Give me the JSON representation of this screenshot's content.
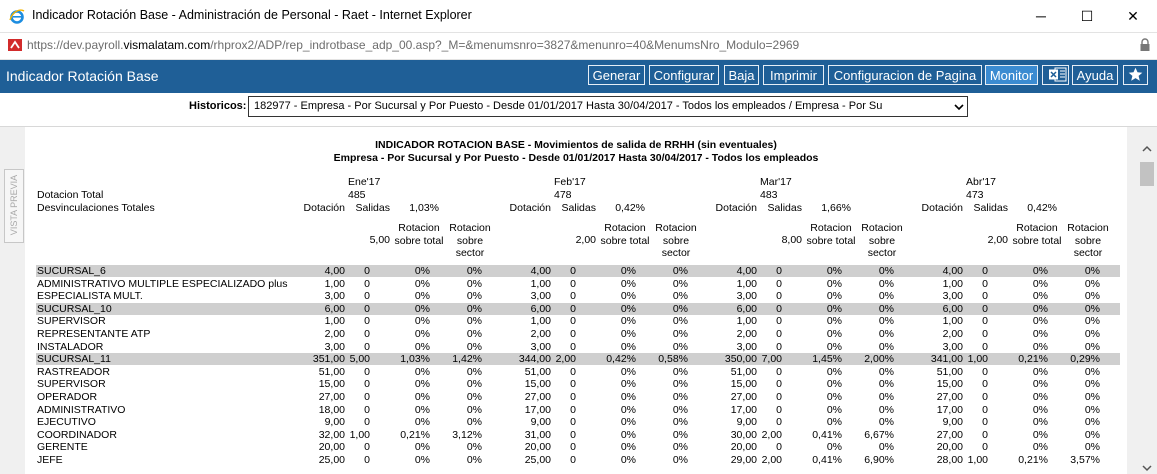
{
  "window": {
    "title": "Indicador Rotación Base - Administración de Personal - Raet - Internet Explorer",
    "minimize": "─",
    "maximize": "☐",
    "close": "✕"
  },
  "address": {
    "prefix": "https://dev.payroll.",
    "host": "vismalatam.com",
    "path": "/rhprox2/ADP/rep_indrotbase_adp_00.asp?_M=&menumsnro=3827&menunro=40&MenumsNro_Modulo=2969"
  },
  "app": {
    "title": "Indicador Rotación Base",
    "buttons": {
      "generar": "Generar",
      "configurar": "Configurar",
      "baja": "Baja",
      "imprimir": "Imprimir",
      "configpagina": "Configuracion de Pagina",
      "monitor": "Monitor",
      "ayuda": "Ayuda"
    }
  },
  "historicos": {
    "label": "Historicos:",
    "value": "182977 - Empresa - Por Sucursal y Por Puesto - Desde 01/01/2017 Hasta 30/04/2017 - Todos los empleados / Empresa - Por Su"
  },
  "vista_previa": "VISTA PREVIA",
  "report": {
    "title": "INDICADOR ROTACION BASE - Movimientos de salida de RRHH (sin eventuales)",
    "subtitle": "Empresa - Por Sucursal y Por Puesto - Desde 01/01/2017 Hasta 30/04/2017 - Todos los empleados",
    "dotacion_total_label": "Dotacion Total",
    "desv_totales_label": "Desvinculaciones Totales",
    "months": [
      {
        "name": "Ene'17",
        "dot_total": "485",
        "hdr_dot": "Dotación",
        "hdr_sal": "Salidas",
        "desv_pct": "1,03%",
        "salidas_total": "5,00",
        "rot_total": "Rotacion sobre total",
        "rot_sector": "Rotacion sobre sector"
      },
      {
        "name": "Feb'17",
        "dot_total": "478",
        "hdr_dot": "Dotación",
        "hdr_sal": "Salidas",
        "desv_pct": "0,42%",
        "salidas_total": "2,00",
        "rot_total": "Rotacion sobre total",
        "rot_sector": "Rotacion sobre sector"
      },
      {
        "name": "Mar'17",
        "dot_total": "483",
        "hdr_dot": "Dotación",
        "hdr_sal": "Salidas",
        "desv_pct": "1,66%",
        "salidas_total": "8,00",
        "rot_total": "Rotacion sobre total",
        "rot_sector": "Rotacion sobre sector"
      },
      {
        "name": "Abr'17",
        "dot_total": "473",
        "hdr_dot": "Dotación",
        "hdr_sal": "Salidas",
        "desv_pct": "0,42%",
        "salidas_total": "2,00",
        "rot_total": "Rotacion sobre total",
        "rot_sector": "Rotacion sobre sector"
      }
    ],
    "rows": [
      {
        "label": "SUCURSAL_6",
        "hl": true,
        "v": [
          [
            "4,00",
            "0",
            "0%",
            "0%"
          ],
          [
            "4,00",
            "0",
            "0%",
            "0%"
          ],
          [
            "4,00",
            "0",
            "0%",
            "0%"
          ],
          [
            "4,00",
            "0",
            "0%",
            "0%"
          ]
        ]
      },
      {
        "label": "ADMINISTRATIVO MULTIPLE ESPECIALIZADO plus",
        "hl": false,
        "v": [
          [
            "1,00",
            "0",
            "0%",
            "0%"
          ],
          [
            "1,00",
            "0",
            "0%",
            "0%"
          ],
          [
            "1,00",
            "0",
            "0%",
            "0%"
          ],
          [
            "1,00",
            "0",
            "0%",
            "0%"
          ]
        ]
      },
      {
        "label": "ESPECIALISTA MULT.",
        "hl": false,
        "v": [
          [
            "3,00",
            "0",
            "0%",
            "0%"
          ],
          [
            "3,00",
            "0",
            "0%",
            "0%"
          ],
          [
            "3,00",
            "0",
            "0%",
            "0%"
          ],
          [
            "3,00",
            "0",
            "0%",
            "0%"
          ]
        ]
      },
      {
        "label": "SUCURSAL_10",
        "hl": true,
        "v": [
          [
            "6,00",
            "0",
            "0%",
            "0%"
          ],
          [
            "6,00",
            "0",
            "0%",
            "0%"
          ],
          [
            "6,00",
            "0",
            "0%",
            "0%"
          ],
          [
            "6,00",
            "0",
            "0%",
            "0%"
          ]
        ]
      },
      {
        "label": "SUPERVISOR",
        "hl": false,
        "v": [
          [
            "1,00",
            "0",
            "0%",
            "0%"
          ],
          [
            "1,00",
            "0",
            "0%",
            "0%"
          ],
          [
            "1,00",
            "0",
            "0%",
            "0%"
          ],
          [
            "1,00",
            "0",
            "0%",
            "0%"
          ]
        ]
      },
      {
        "label": "REPRESENTANTE ATP",
        "hl": false,
        "v": [
          [
            "2,00",
            "0",
            "0%",
            "0%"
          ],
          [
            "2,00",
            "0",
            "0%",
            "0%"
          ],
          [
            "2,00",
            "0",
            "0%",
            "0%"
          ],
          [
            "2,00",
            "0",
            "0%",
            "0%"
          ]
        ]
      },
      {
        "label": "INSTALADOR",
        "hl": false,
        "v": [
          [
            "3,00",
            "0",
            "0%",
            "0%"
          ],
          [
            "3,00",
            "0",
            "0%",
            "0%"
          ],
          [
            "3,00",
            "0",
            "0%",
            "0%"
          ],
          [
            "3,00",
            "0",
            "0%",
            "0%"
          ]
        ]
      },
      {
        "label": "SUCURSAL_11",
        "hl": true,
        "v": [
          [
            "351,00",
            "5,00",
            "1,03%",
            "1,42%"
          ],
          [
            "344,00",
            "2,00",
            "0,42%",
            "0,58%"
          ],
          [
            "350,00",
            "7,00",
            "1,45%",
            "2,00%"
          ],
          [
            "341,00",
            "1,00",
            "0,21%",
            "0,29%"
          ]
        ]
      },
      {
        "label": "RASTREADOR",
        "hl": false,
        "v": [
          [
            "51,00",
            "0",
            "0%",
            "0%"
          ],
          [
            "51,00",
            "0",
            "0%",
            "0%"
          ],
          [
            "51,00",
            "0",
            "0%",
            "0%"
          ],
          [
            "51,00",
            "0",
            "0%",
            "0%"
          ]
        ]
      },
      {
        "label": "SUPERVISOR",
        "hl": false,
        "v": [
          [
            "15,00",
            "0",
            "0%",
            "0%"
          ],
          [
            "15,00",
            "0",
            "0%",
            "0%"
          ],
          [
            "15,00",
            "0",
            "0%",
            "0%"
          ],
          [
            "15,00",
            "0",
            "0%",
            "0%"
          ]
        ]
      },
      {
        "label": "OPERADOR",
        "hl": false,
        "v": [
          [
            "27,00",
            "0",
            "0%",
            "0%"
          ],
          [
            "27,00",
            "0",
            "0%",
            "0%"
          ],
          [
            "27,00",
            "0",
            "0%",
            "0%"
          ],
          [
            "27,00",
            "0",
            "0%",
            "0%"
          ]
        ]
      },
      {
        "label": "ADMINISTRATIVO",
        "hl": false,
        "v": [
          [
            "18,00",
            "0",
            "0%",
            "0%"
          ],
          [
            "17,00",
            "0",
            "0%",
            "0%"
          ],
          [
            "17,00",
            "0",
            "0%",
            "0%"
          ],
          [
            "17,00",
            "0",
            "0%",
            "0%"
          ]
        ]
      },
      {
        "label": "EJECUTIVO",
        "hl": false,
        "v": [
          [
            "9,00",
            "0",
            "0%",
            "0%"
          ],
          [
            "9,00",
            "0",
            "0%",
            "0%"
          ],
          [
            "9,00",
            "0",
            "0%",
            "0%"
          ],
          [
            "9,00",
            "0",
            "0%",
            "0%"
          ]
        ]
      },
      {
        "label": "COORDINADOR",
        "hl": false,
        "v": [
          [
            "32,00",
            "1,00",
            "0,21%",
            "3,12%"
          ],
          [
            "31,00",
            "0",
            "0%",
            "0%"
          ],
          [
            "30,00",
            "2,00",
            "0,41%",
            "6,67%"
          ],
          [
            "27,00",
            "0",
            "0%",
            "0%"
          ]
        ]
      },
      {
        "label": "GERENTE",
        "hl": false,
        "v": [
          [
            "20,00",
            "0",
            "0%",
            "0%"
          ],
          [
            "20,00",
            "0",
            "0%",
            "0%"
          ],
          [
            "20,00",
            "0",
            "0%",
            "0%"
          ],
          [
            "20,00",
            "0",
            "0%",
            "0%"
          ]
        ]
      },
      {
        "label": "JEFE",
        "hl": false,
        "v": [
          [
            "25,00",
            "0",
            "0%",
            "0%"
          ],
          [
            "25,00",
            "0",
            "0%",
            "0%"
          ],
          [
            "29,00",
            "2,00",
            "0,41%",
            "6,90%"
          ],
          [
            "28,00",
            "1,00",
            "0,21%",
            "3,57%"
          ]
        ]
      }
    ]
  },
  "colors": {
    "appbar": "#1f5f97",
    "monitor_active": "#3b8bd1",
    "highlight_row": "#cfcfcf"
  }
}
